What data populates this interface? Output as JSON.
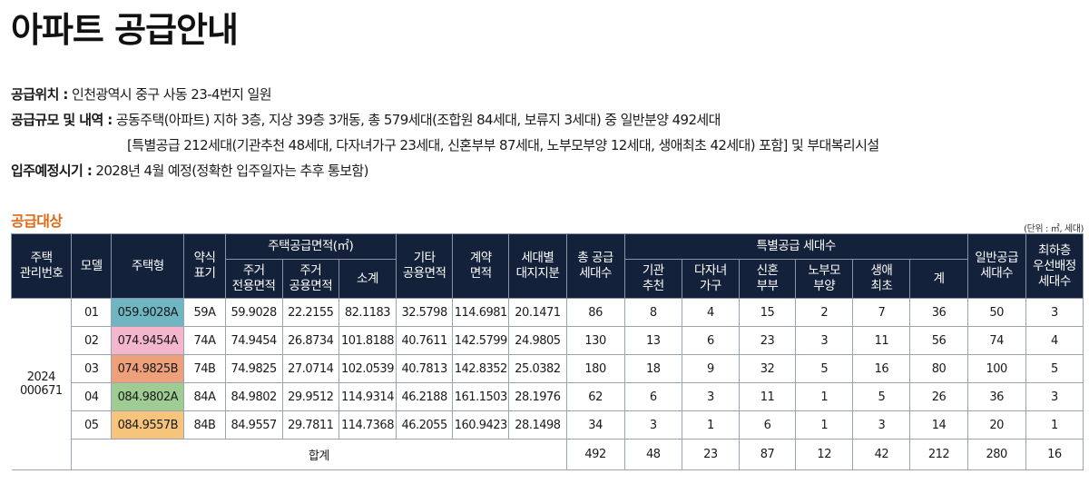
{
  "title": "아파트 공급안내",
  "info": {
    "location_label": "공급위치 :",
    "location_value": " 인천광역시 중구 사동 23-4번지 일원",
    "scale_label": "공급규모 및 내역 :",
    "scale_value": " 공동주택(아파트) 지하 3층, 지상 39층 3개동, 총 579세대(조합원 84세대, 보류지 3세대) 중 일반분양 492세대",
    "scale_value_2": "[특별공급 212세대(기관추천 48세대, 다자녀가구 23세대, 신혼부부 87세대, 노부모부양 12세대, 생애최초 42세대) 포함] 및 부대복리시설",
    "movein_label": "입주예정시기 :",
    "movein_value": " 2028년 4월 예정(정확한 입주일자는 추후 통보함)"
  },
  "section_title": "공급대상",
  "unit_note": "(단위 : ㎡, 세대)",
  "headers": {
    "mgmt_no": "주택\n관리번호",
    "model": "모델",
    "type": "주택형",
    "short": "약식\n표기",
    "area_group": "주택공급면적(㎡)",
    "exclusive": "주거\n전용면적",
    "common": "주거\n공용면적",
    "subtotal": "소계",
    "other_common": "기타\n공용면적",
    "contract": "계약\n면적",
    "land_share": "세대별\n대지지분",
    "total_units": "총 공급\n세대수",
    "special_group": "특별공급 세대수",
    "inst": "기관\n추천",
    "multi_child": "다자녀\n가구",
    "newlywed": "신혼\n부부",
    "elderly": "노부모\n부양",
    "first_life": "생애\n최초",
    "special_sum": "계",
    "general": "일반공급\n세대수",
    "lowest_floor": "최하층\n우선배정\n세대수"
  },
  "mgmt_number": "2024\n000671",
  "rows": [
    {
      "model": "01",
      "type": "059.9028A",
      "type_color": "#6fb6c2",
      "short": "59A",
      "exclusive": "59.9028",
      "common": "22.2155",
      "subtotal": "82.1183",
      "other": "32.5798",
      "contract": "114.6981",
      "land": "20.1471",
      "total": "86",
      "inst": "8",
      "multi": "4",
      "newlywed": "15",
      "elderly": "2",
      "first": "7",
      "sp_sum": "36",
      "general": "50",
      "lowest": "3"
    },
    {
      "model": "02",
      "type": "074.9454A",
      "type_color": "#f4b6cc",
      "short": "74A",
      "exclusive": "74.9454",
      "common": "26.8734",
      "subtotal": "101.8188",
      "other": "40.7611",
      "contract": "142.5799",
      "land": "24.9805",
      "total": "130",
      "inst": "13",
      "multi": "6",
      "newlywed": "23",
      "elderly": "3",
      "first": "11",
      "sp_sum": "56",
      "general": "74",
      "lowest": "4"
    },
    {
      "model": "03",
      "type": "074.9825B",
      "type_color": "#eea07a",
      "short": "74B",
      "exclusive": "74.9825",
      "common": "27.0714",
      "subtotal": "102.0539",
      "other": "40.7813",
      "contract": "142.8352",
      "land": "25.0382",
      "total": "180",
      "inst": "18",
      "multi": "9",
      "newlywed": "32",
      "elderly": "5",
      "first": "16",
      "sp_sum": "80",
      "general": "100",
      "lowest": "5"
    },
    {
      "model": "04",
      "type": "084.9802A",
      "type_color": "#9fcc92",
      "short": "84A",
      "exclusive": "84.9802",
      "common": "29.9512",
      "subtotal": "114.9314",
      "other": "46.2188",
      "contract": "161.1503",
      "land": "28.1976",
      "total": "62",
      "inst": "6",
      "multi": "3",
      "newlywed": "11",
      "elderly": "1",
      "first": "5",
      "sp_sum": "26",
      "general": "36",
      "lowest": "3"
    },
    {
      "model": "05",
      "type": "084.9557B",
      "type_color": "#f6c47a",
      "short": "84B",
      "exclusive": "84.9557",
      "common": "29.7811",
      "subtotal": "114.7368",
      "other": "46.2055",
      "contract": "160.9423",
      "land": "28.1498",
      "total": "34",
      "inst": "3",
      "multi": "1",
      "newlywed": "6",
      "elderly": "1",
      "first": "3",
      "sp_sum": "14",
      "general": "20",
      "lowest": "1"
    }
  ],
  "total_row": {
    "label": "합계",
    "total": "492",
    "inst": "48",
    "multi": "23",
    "newlywed": "87",
    "elderly": "12",
    "first": "42",
    "sp_sum": "212",
    "general": "280",
    "lowest": "16"
  },
  "colors": {
    "header_bg": "#14213a",
    "section_title": "#e06a16"
  }
}
